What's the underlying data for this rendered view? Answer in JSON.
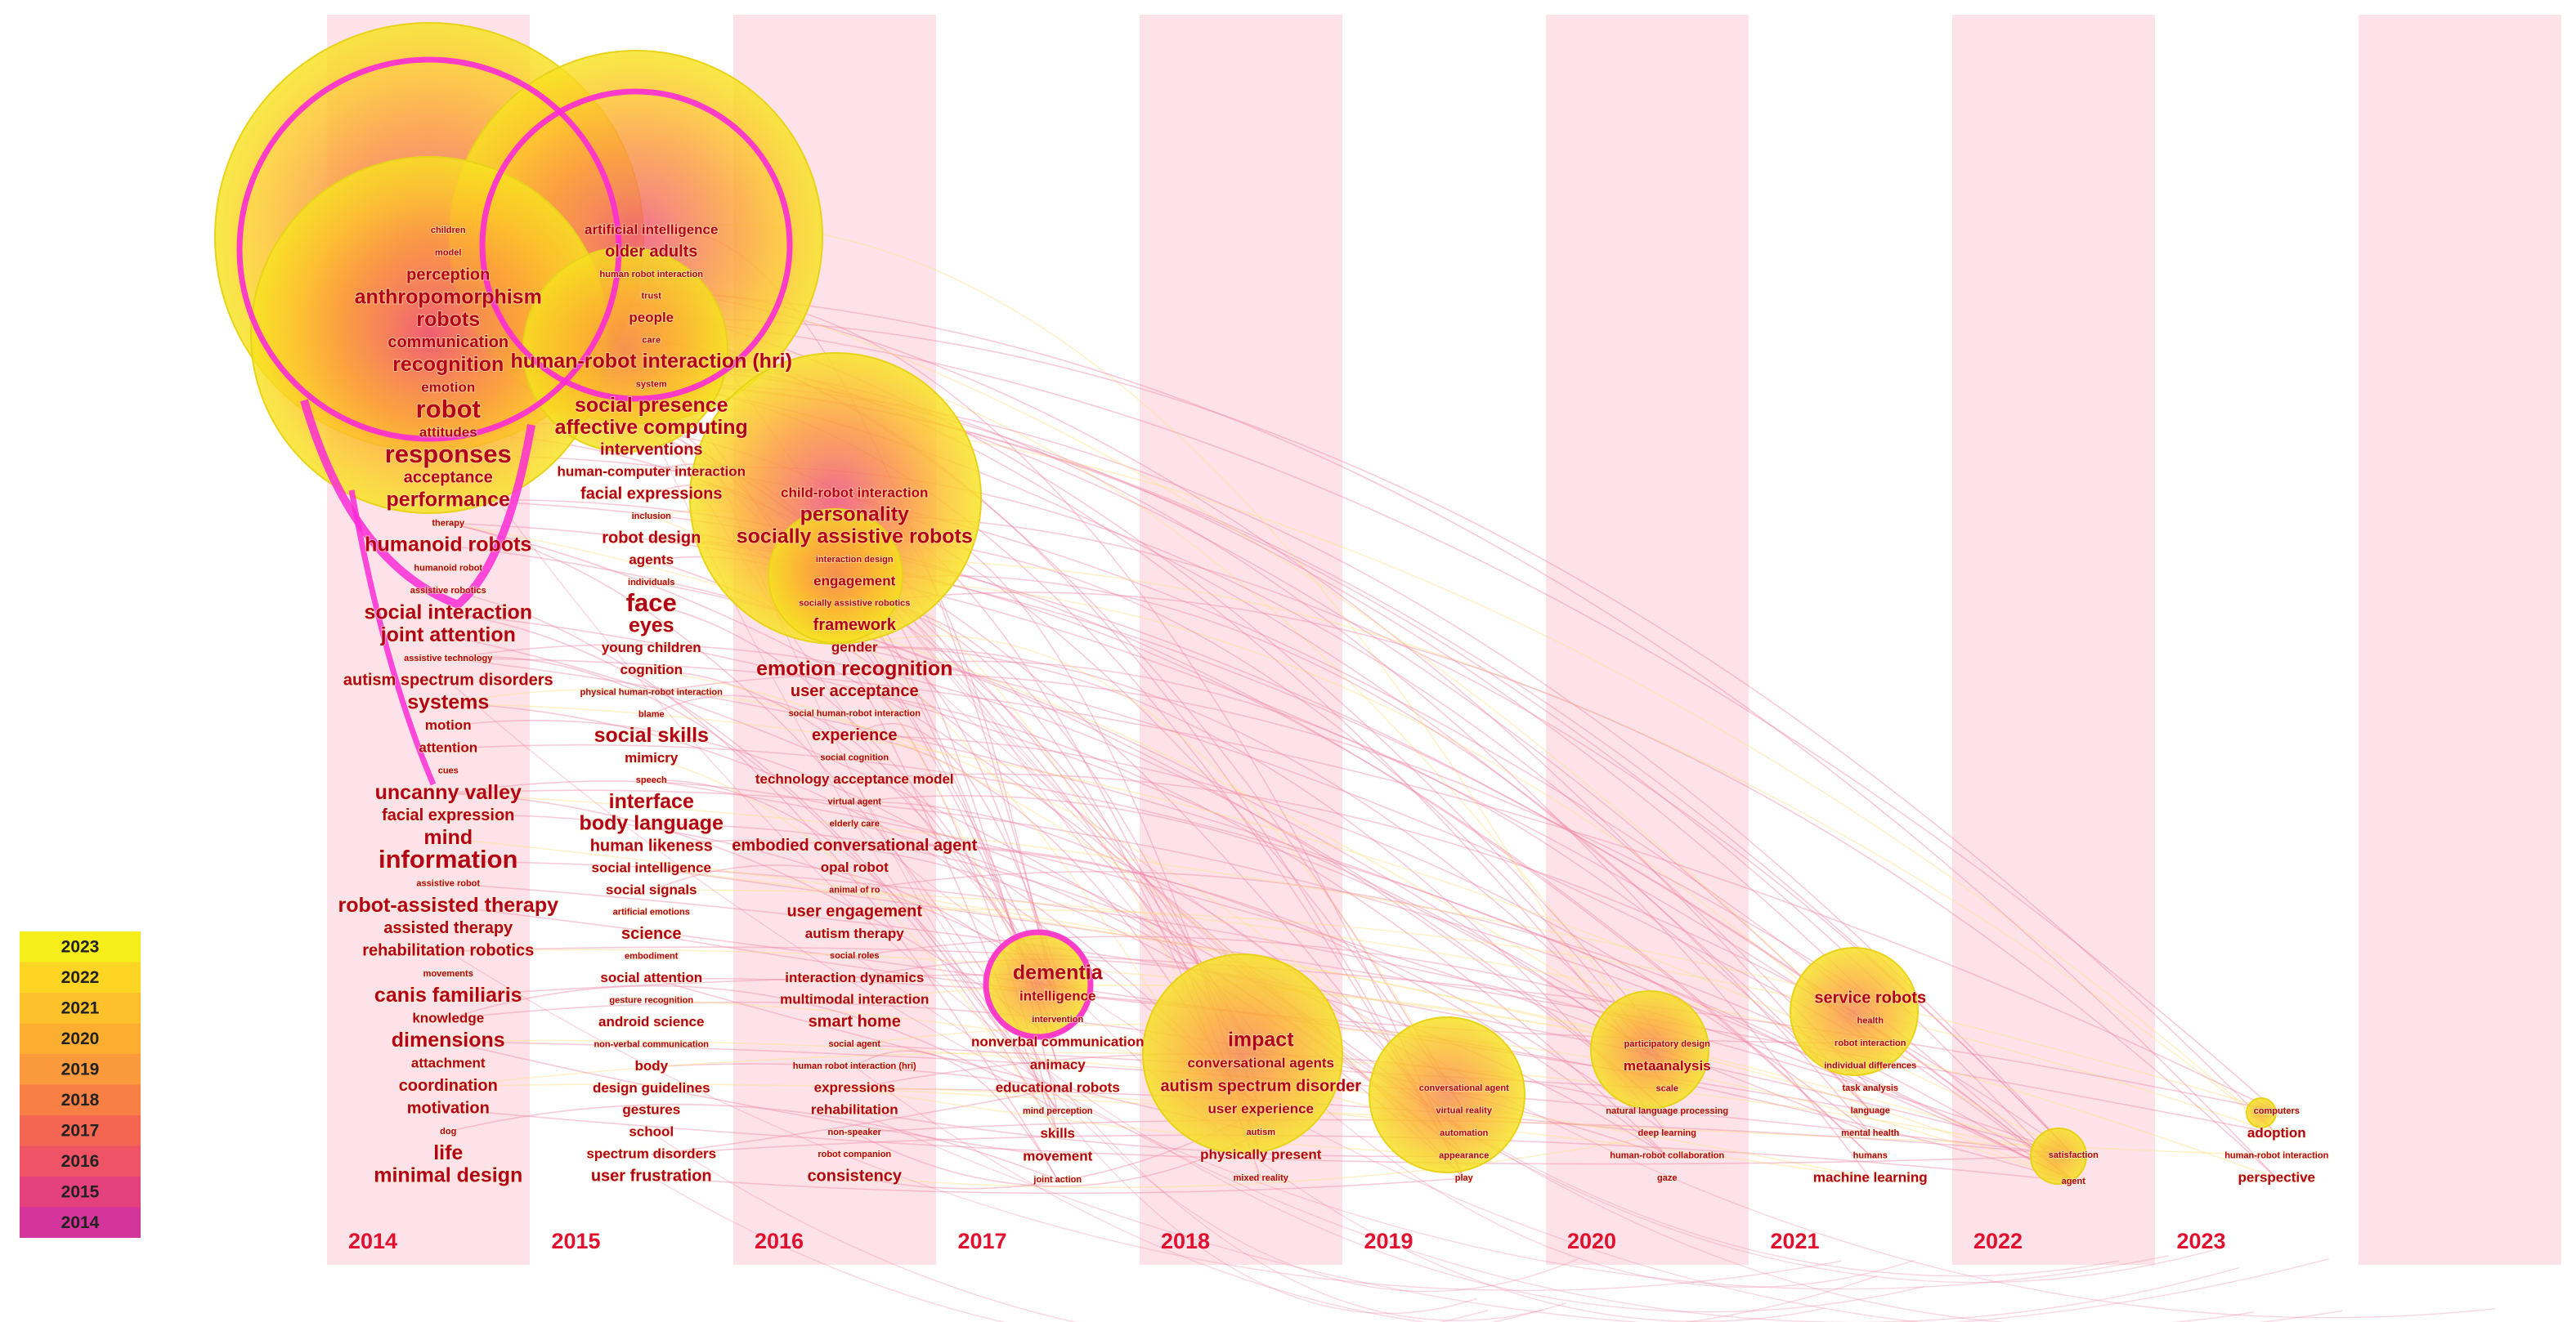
{
  "chart_data": {
    "type": "timezone_map",
    "years": [
      "2014",
      "2015",
      "2016",
      "2017",
      "2018",
      "2019",
      "2020",
      "2021",
      "2022",
      "2023"
    ],
    "legend": [
      "2023",
      "2022",
      "2021",
      "2020",
      "2019",
      "2018",
      "2017",
      "2016",
      "2015",
      "2014"
    ],
    "colors": {
      "2014": "#d4359c",
      "2015": "#e4407d",
      "2016": "#ee5466",
      "2017": "#f56652",
      "2018": "#f98045",
      "2019": "#fb9a3c",
      "2020": "#fcae31",
      "2021": "#fec12a",
      "2022": "#fdd522",
      "2023": "#f5ee1a",
      "band": "#fde3e9",
      "year_label": "#e0102e",
      "keyword": "#b3001b",
      "link": "#f08aa8"
    },
    "columns": [
      {
        "year": "2014",
        "keywords": [
          "children",
          "model",
          "perception",
          "anthropomorphism",
          "robots",
          "communication",
          "recognition",
          "emotion",
          "robot",
          "attitudes",
          "responses",
          "acceptance",
          "performance",
          "therapy",
          "humanoid robots",
          "humanoid robot",
          "assistive robotics",
          "social interaction",
          "joint attention",
          "assistive technology",
          "autism spectrum disorders",
          "systems",
          "motion",
          "attention",
          "cues",
          "uncanny valley",
          "facial expression",
          "mind",
          "information",
          "assistive robot",
          "robot-assisted therapy",
          "assisted therapy",
          "rehabilitation robotics",
          "movements",
          "canis familiaris",
          "knowledge",
          "dimensions",
          "attachment",
          "coordination",
          "motivation",
          "dog",
          "life",
          "minimal design"
        ],
        "weights": [
          1,
          1,
          3,
          4,
          4,
          3,
          4,
          2,
          5,
          2,
          5,
          3,
          4,
          1,
          4,
          1,
          1,
          4,
          4,
          1,
          3,
          4,
          2,
          2,
          1,
          4,
          3,
          4,
          5,
          1,
          4,
          3,
          3,
          1,
          4,
          2,
          4,
          2,
          3,
          3,
          1,
          4,
          4
        ]
      },
      {
        "year": "2015",
        "keywords": [
          "artificial intelligence",
          "older adults",
          "human robot interaction",
          "trust",
          "people",
          "care",
          "human-robot interaction (hri)",
          "system",
          "social presence",
          "affective computing",
          "interventions",
          "human-computer interaction",
          "facial expressions",
          "inclusion",
          "robot design",
          "agents",
          "individuals",
          "face",
          "eyes",
          "young children",
          "cognition",
          "physical human-robot interaction",
          "blame",
          "social skills",
          "mimicry",
          "speech",
          "interface",
          "body language",
          "human likeness",
          "social intelligence",
          "social signals",
          "artificial emotions",
          "science",
          "embodiment",
          "social attention",
          "gesture recognition",
          "android science",
          "non-verbal communication",
          "body",
          "design guidelines",
          "gestures",
          "school",
          "spectrum disorders",
          "user frustration"
        ],
        "weights": [
          2,
          3,
          1,
          1,
          2,
          1,
          4,
          1,
          4,
          4,
          3,
          2,
          3,
          1,
          3,
          2,
          1,
          5,
          4,
          2,
          2,
          1,
          1,
          4,
          2,
          1,
          4,
          4,
          3,
          2,
          2,
          1,
          3,
          1,
          2,
          1,
          2,
          1,
          2,
          2,
          2,
          2,
          2,
          3
        ]
      },
      {
        "year": "2016",
        "keywords": [
          "child-robot interaction",
          "personality",
          "socially assistive robots",
          "interaction design",
          "engagement",
          "socially assistive robotics",
          "framework",
          "gender",
          "emotion recognition",
          "user acceptance",
          "social human-robot interaction",
          "experience",
          "social cognition",
          "technology acceptance model",
          "virtual agent",
          "elderly care",
          "embodied conversational agent",
          "opal robot",
          "animal of ro",
          "user engagement",
          "autism therapy",
          "social roles",
          "interaction dynamics",
          "multimodal interaction",
          "smart home",
          "social agent",
          "human robot interaction (hri)",
          "expressions",
          "rehabilitation",
          "non-speaker",
          "robot companion",
          "consistency"
        ],
        "weights": [
          2,
          4,
          4,
          1,
          2,
          1,
          3,
          2,
          4,
          3,
          1,
          3,
          1,
          2,
          1,
          1,
          3,
          2,
          1,
          3,
          2,
          1,
          2,
          2,
          3,
          1,
          1,
          2,
          2,
          1,
          1,
          3
        ]
      },
      {
        "year": "2017",
        "keywords": [
          "dementia",
          "intelligence",
          "intervention",
          "nonverbal communication",
          "animacy",
          "educational robots",
          "mind perception",
          "skills",
          "movement",
          "joint action"
        ],
        "weights": [
          4,
          2,
          1,
          2,
          2,
          2,
          1,
          2,
          2,
          1
        ]
      },
      {
        "year": "2018",
        "keywords": [
          "impact",
          "conversational agents",
          "autism spectrum disorder",
          "user experience",
          "autism",
          "physically present",
          "mixed reality"
        ],
        "weights": [
          4,
          2,
          3,
          2,
          1,
          2,
          1
        ]
      },
      {
        "year": "2019",
        "keywords": [
          "conversational agent",
          "virtual reality",
          "automation",
          "appearance",
          "play"
        ],
        "weights": [
          1,
          1,
          1,
          1,
          1
        ]
      },
      {
        "year": "2020",
        "keywords": [
          "participatory design",
          "metaanalysis",
          "scale",
          "natural language processing",
          "deep learning",
          "human-robot collaboration",
          "gaze"
        ],
        "weights": [
          1,
          2,
          1,
          1,
          1,
          1,
          1
        ]
      },
      {
        "year": "2021",
        "keywords": [
          "service robots",
          "health",
          "robot interaction",
          "individual differences",
          "task analysis",
          "language",
          "mental health",
          "humans",
          "machine learning"
        ],
        "weights": [
          3,
          1,
          1,
          1,
          1,
          1,
          1,
          1,
          2
        ]
      },
      {
        "year": "2022",
        "keywords": [
          "satisfaction",
          "agent"
        ],
        "weights": [
          1,
          1
        ]
      },
      {
        "year": "2023",
        "keywords": [
          "computers",
          "adoption",
          "human-robot interaction",
          "perspective"
        ],
        "weights": [
          1,
          2,
          1,
          2
        ]
      }
    ]
  }
}
